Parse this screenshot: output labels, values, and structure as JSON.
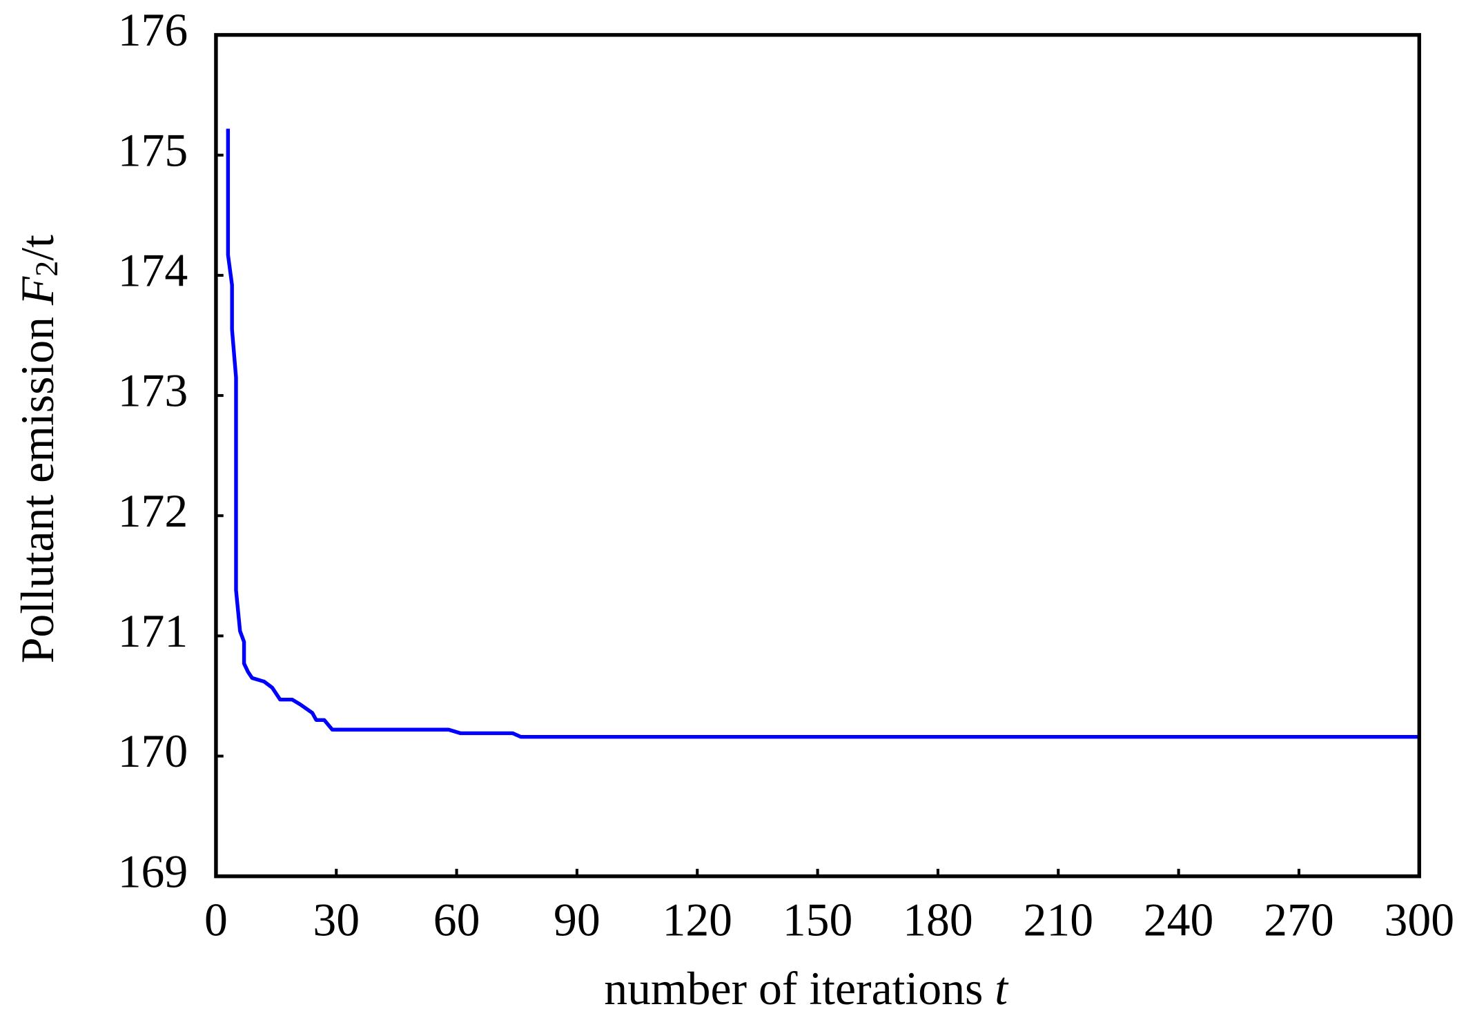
{
  "chart_data": {
    "type": "line",
    "x_label": {
      "text": "number of iterations ",
      "var": "t"
    },
    "y_label": {
      "text": "Pollutant emission ",
      "var": "F",
      "sub": "2",
      "unit": "/t"
    },
    "x": [
      3,
      3,
      4,
      4,
      5,
      5,
      6,
      7,
      7,
      8,
      9,
      12,
      14,
      16,
      19,
      21,
      24,
      25,
      27,
      29,
      58,
      61,
      74,
      76,
      300
    ],
    "series": [
      {
        "color": "#0000ff",
        "values": [
          175.22,
          174.17,
          173.92,
          173.55,
          173.15,
          171.38,
          171.04,
          170.95,
          170.77,
          170.7,
          170.65,
          170.62,
          170.57,
          170.47,
          170.47,
          170.43,
          170.36,
          170.3,
          170.3,
          170.22,
          170.22,
          170.19,
          170.19,
          170.16,
          170.16
        ]
      }
    ],
    "xlim": [
      0,
      300
    ],
    "xticks": [
      0,
      30,
      60,
      90,
      120,
      150,
      180,
      210,
      240,
      270,
      300
    ],
    "ylim": [
      169,
      176
    ],
    "yticks": [
      169,
      170,
      171,
      172,
      173,
      174,
      175,
      176
    ]
  }
}
